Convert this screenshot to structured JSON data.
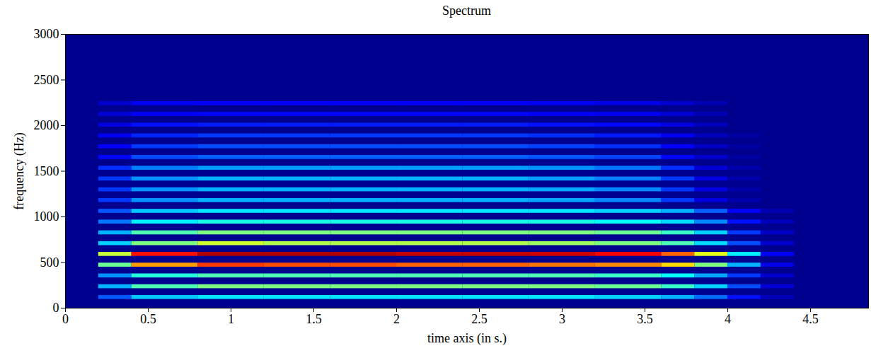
{
  "chart_data": {
    "type": "heatmap",
    "title": "Spectrum",
    "x_label": "time axis (in s.)",
    "y_label": "frequency (Hz)",
    "xlim": [
      0,
      4.85
    ],
    "ylim": [
      0,
      3000
    ],
    "xticks": [
      0,
      0.5,
      1,
      1.5,
      2,
      2.5,
      3,
      3.5,
      4,
      4.5
    ],
    "yticks": [
      0,
      500,
      1000,
      1500,
      2000,
      2500,
      3000
    ],
    "zlim": [
      0,
      1
    ],
    "time_edges": [
      0.2,
      0.4,
      0.8,
      1.2,
      1.6,
      2.0,
      2.4,
      2.8,
      3.2,
      3.6,
      3.8,
      4.0,
      4.2,
      4.4
    ],
    "frequencies": [
      118,
      236,
      354,
      472,
      590,
      708,
      826,
      944,
      1062,
      1180,
      1298,
      1416,
      1534,
      1652,
      1770,
      1888,
      2006,
      2124,
      2242
    ],
    "cells": [
      [
        0.21,
        0.32,
        0.35,
        0.35,
        0.35,
        0.35,
        0.35,
        0.35,
        0.33,
        0.3,
        0.23,
        0.14,
        0.05
      ],
      [
        0.3,
        0.45,
        0.5,
        0.5,
        0.5,
        0.5,
        0.5,
        0.5,
        0.48,
        0.43,
        0.33,
        0.2,
        0.08
      ],
      [
        0.27,
        0.41,
        0.45,
        0.45,
        0.45,
        0.45,
        0.45,
        0.45,
        0.43,
        0.38,
        0.29,
        0.18,
        0.07
      ],
      [
        0.48,
        0.72,
        0.82,
        0.8,
        0.8,
        0.78,
        0.78,
        0.76,
        0.74,
        0.66,
        0.5,
        0.3,
        0.1
      ],
      [
        0.57,
        0.86,
        0.95,
        0.95,
        0.95,
        0.93,
        0.93,
        0.92,
        0.88,
        0.78,
        0.6,
        0.36,
        0.12
      ],
      [
        0.33,
        0.5,
        0.58,
        0.55,
        0.55,
        0.55,
        0.55,
        0.53,
        0.5,
        0.45,
        0.34,
        0.2,
        0.07
      ],
      [
        0.3,
        0.45,
        0.5,
        0.5,
        0.5,
        0.5,
        0.5,
        0.5,
        0.48,
        0.43,
        0.33,
        0.18,
        0.06
      ],
      [
        0.24,
        0.36,
        0.4,
        0.4,
        0.4,
        0.4,
        0.4,
        0.4,
        0.38,
        0.34,
        0.26,
        0.14,
        0.05
      ],
      [
        0.21,
        0.32,
        0.35,
        0.35,
        0.35,
        0.35,
        0.35,
        0.35,
        0.33,
        0.3,
        0.22,
        0.12,
        0.04
      ],
      [
        0.18,
        0.27,
        0.3,
        0.3,
        0.3,
        0.3,
        0.3,
        0.29,
        0.26,
        0.18,
        0.09,
        0.03,
        0
      ],
      [
        0.18,
        0.27,
        0.3,
        0.3,
        0.3,
        0.3,
        0.3,
        0.29,
        0.26,
        0.18,
        0.09,
        0.03,
        0
      ],
      [
        0.18,
        0.27,
        0.3,
        0.3,
        0.3,
        0.3,
        0.3,
        0.28,
        0.25,
        0.18,
        0.09,
        0.03,
        0
      ],
      [
        0.17,
        0.25,
        0.28,
        0.28,
        0.28,
        0.28,
        0.28,
        0.27,
        0.24,
        0.17,
        0.08,
        0.03,
        0
      ],
      [
        0.13,
        0.2,
        0.22,
        0.22,
        0.22,
        0.22,
        0.22,
        0.21,
        0.19,
        0.13,
        0.07,
        0.02,
        0
      ],
      [
        0.12,
        0.18,
        0.2,
        0.2,
        0.2,
        0.2,
        0.2,
        0.19,
        0.17,
        0.12,
        0.06,
        0.02,
        0
      ],
      [
        0.11,
        0.16,
        0.18,
        0.18,
        0.18,
        0.18,
        0.18,
        0.17,
        0.15,
        0.11,
        0.05,
        0.02,
        0
      ],
      [
        0.09,
        0.14,
        0.15,
        0.15,
        0.15,
        0.15,
        0.15,
        0.14,
        0.13,
        0.09,
        0.05,
        0,
        0
      ],
      [
        0.08,
        0.12,
        0.13,
        0.13,
        0.13,
        0.13,
        0.13,
        0.12,
        0.11,
        0.08,
        0.04,
        0,
        0
      ],
      [
        0.07,
        0.11,
        0.12,
        0.12,
        0.12,
        0.12,
        0.12,
        0.11,
        0.1,
        0.07,
        0.04,
        0,
        0
      ]
    ]
  }
}
